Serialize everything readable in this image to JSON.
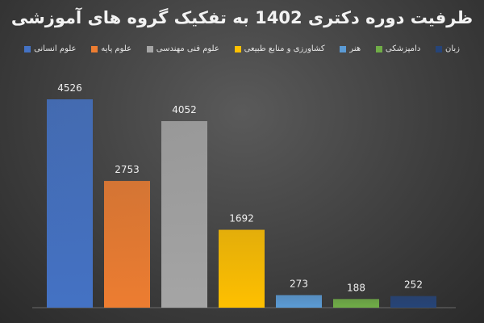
{
  "chart_data": {
    "type": "bar",
    "title": "ظرفیت دوره دکتری 1402 به تفکیک گروه های آموزشی",
    "xlabel": "",
    "ylabel": "",
    "ylim": [
      0,
      5000
    ],
    "grid": false,
    "legend_position": "top",
    "categories": [
      "علوم انسانی",
      "علوم پایه",
      "علوم فنی مهندسی",
      "کشاورزی و منابع طبیعی",
      "هنر",
      "دامپزشکی",
      "زبان"
    ],
    "values": [
      4526,
      2753,
      4052,
      1692,
      273,
      188,
      252
    ],
    "colors": [
      "#4472c4",
      "#ed7d31",
      "#a5a5a5",
      "#ffc000",
      "#5b9bd5",
      "#70ad47",
      "#264478"
    ],
    "data_labels": [
      "4526",
      "2753",
      "4052",
      "1692",
      "273",
      "188",
      "252"
    ]
  }
}
